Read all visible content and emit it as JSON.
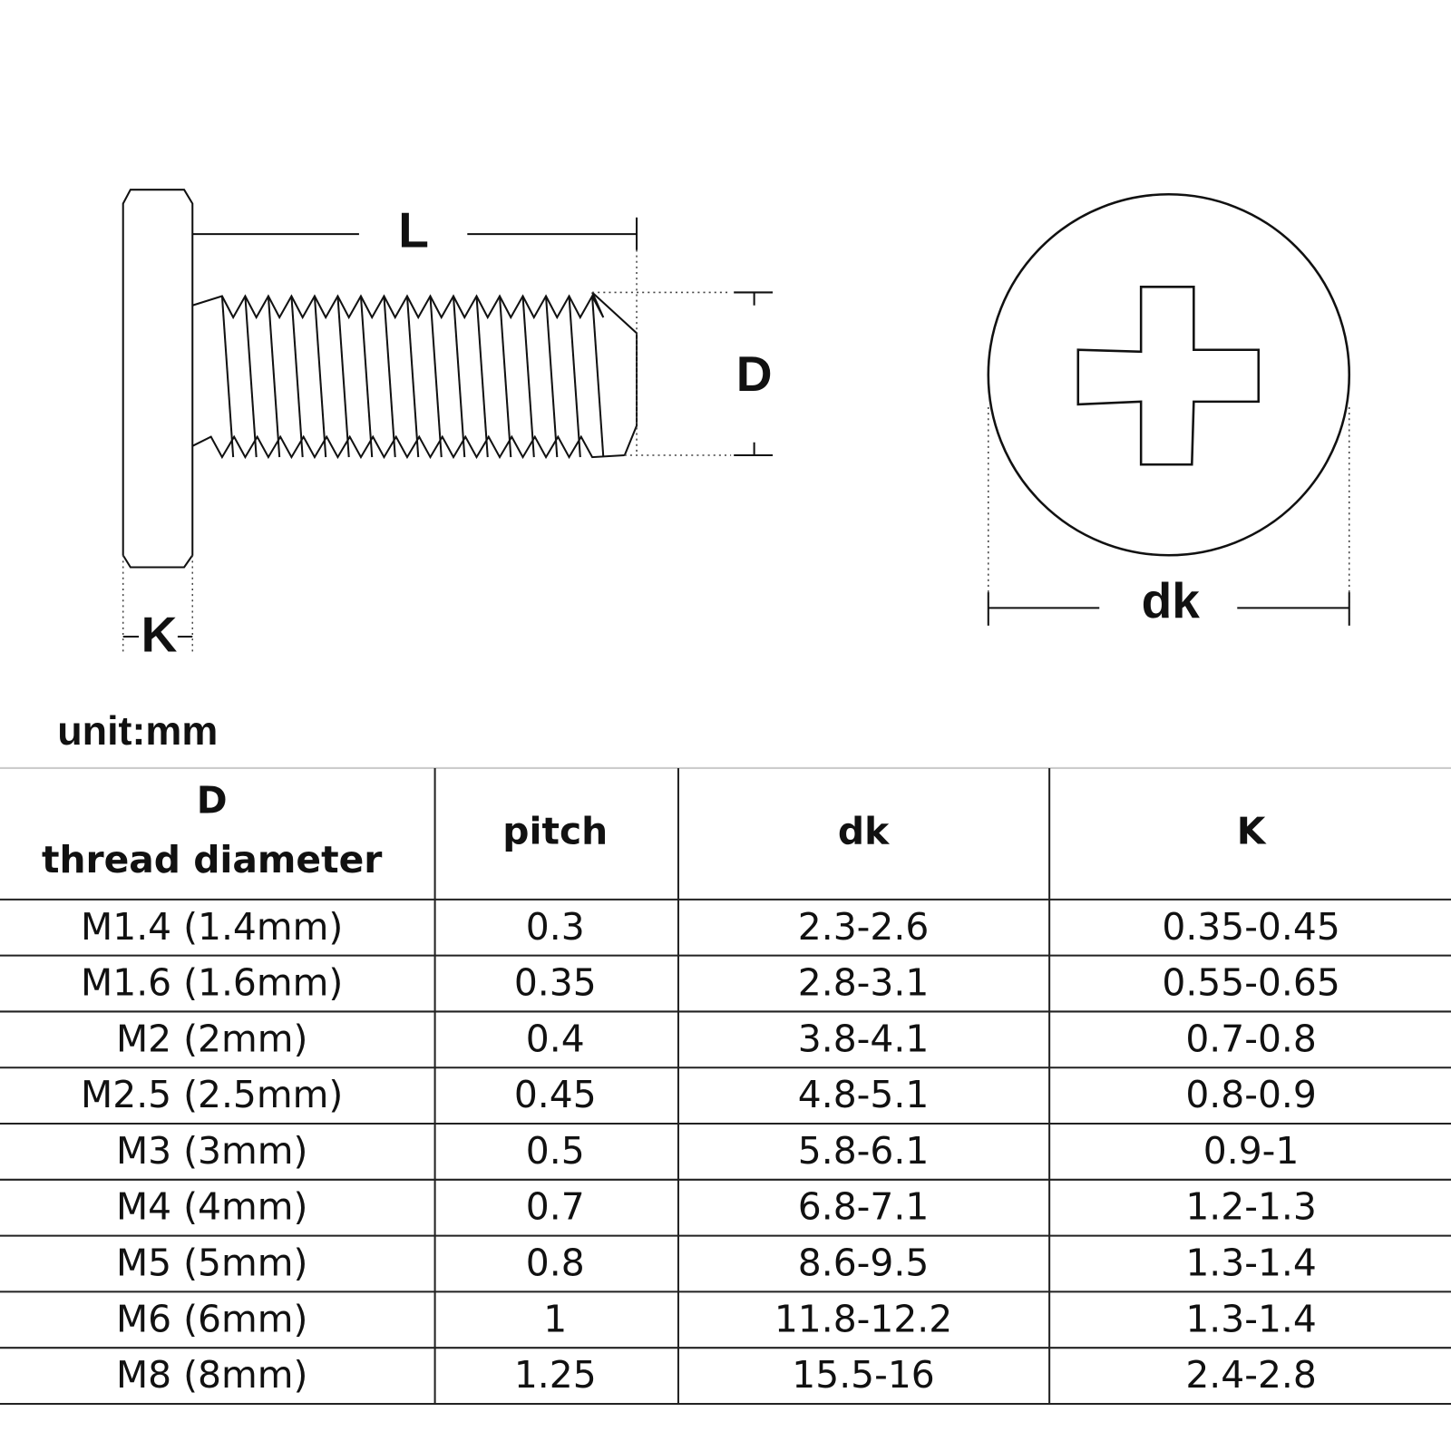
{
  "diagram": {
    "labels": {
      "L": "L",
      "D": "D",
      "K": "K",
      "dk": "dk"
    }
  },
  "unit": "unit:mm",
  "table": {
    "header": [
      [
        "D",
        "thread diameter"
      ],
      [
        "pitch"
      ],
      [
        "dk"
      ],
      [
        "K"
      ]
    ],
    "rows": [
      [
        "M1.4 (1.4mm)",
        "0.3",
        "2.3-2.6",
        "0.35-0.45"
      ],
      [
        "M1.6 (1.6mm)",
        "0.35",
        "2.8-3.1",
        "0.55-0.65"
      ],
      [
        "M2 (2mm)",
        "0.4",
        "3.8-4.1",
        "0.7-0.8"
      ],
      [
        "M2.5 (2.5mm)",
        "0.45",
        "4.8-5.1",
        "0.8-0.9"
      ],
      [
        "M3 (3mm)",
        "0.5",
        "5.8-6.1",
        "0.9-1"
      ],
      [
        "M4 (4mm)",
        "0.7",
        "6.8-7.1",
        "1.2-1.3"
      ],
      [
        "M5 (5mm)",
        "0.8",
        "8.6-9.5",
        "1.3-1.4"
      ],
      [
        "M6 (6mm)",
        "1",
        "11.8-12.2",
        "1.3-1.4"
      ],
      [
        "M8 (8mm)",
        "1.25",
        "15.5-16",
        "2.4-2.8"
      ]
    ]
  }
}
